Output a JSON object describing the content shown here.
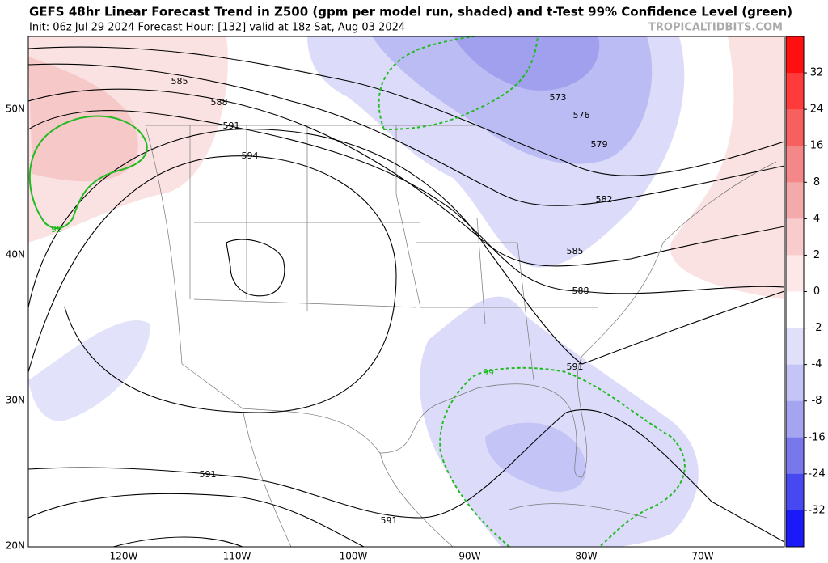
{
  "header": {
    "title": "GEFS 48hr Linear Forecast Trend in Z500 (gpm per model run, shaded) and t-Test 99% Confidence Level (green)",
    "subtitle": "Init: 06z Jul 29 2024   Forecast Hour: [132]   valid at 18z Sat, Aug 03 2024",
    "watermark": "TROPICALTIDBITS.COM"
  },
  "map": {
    "lat_labels": [
      "50N",
      "40N",
      "30N",
      "20N"
    ],
    "lon_labels": [
      "120W",
      "110W",
      "100W",
      "90W",
      "80W",
      "70W"
    ],
    "contour_labels": [
      "585",
      "588",
      "591",
      "594",
      "573",
      "576",
      "579",
      "582",
      "585",
      "588",
      "591",
      "591",
      "591"
    ],
    "confidence_labels": [
      "99",
      "99"
    ]
  },
  "colorbar": {
    "labels": [
      "32",
      "24",
      "16",
      "8",
      "4",
      "2",
      "0",
      "-2",
      "-4",
      "-8",
      "-16",
      "-24",
      "-32"
    ]
  }
}
